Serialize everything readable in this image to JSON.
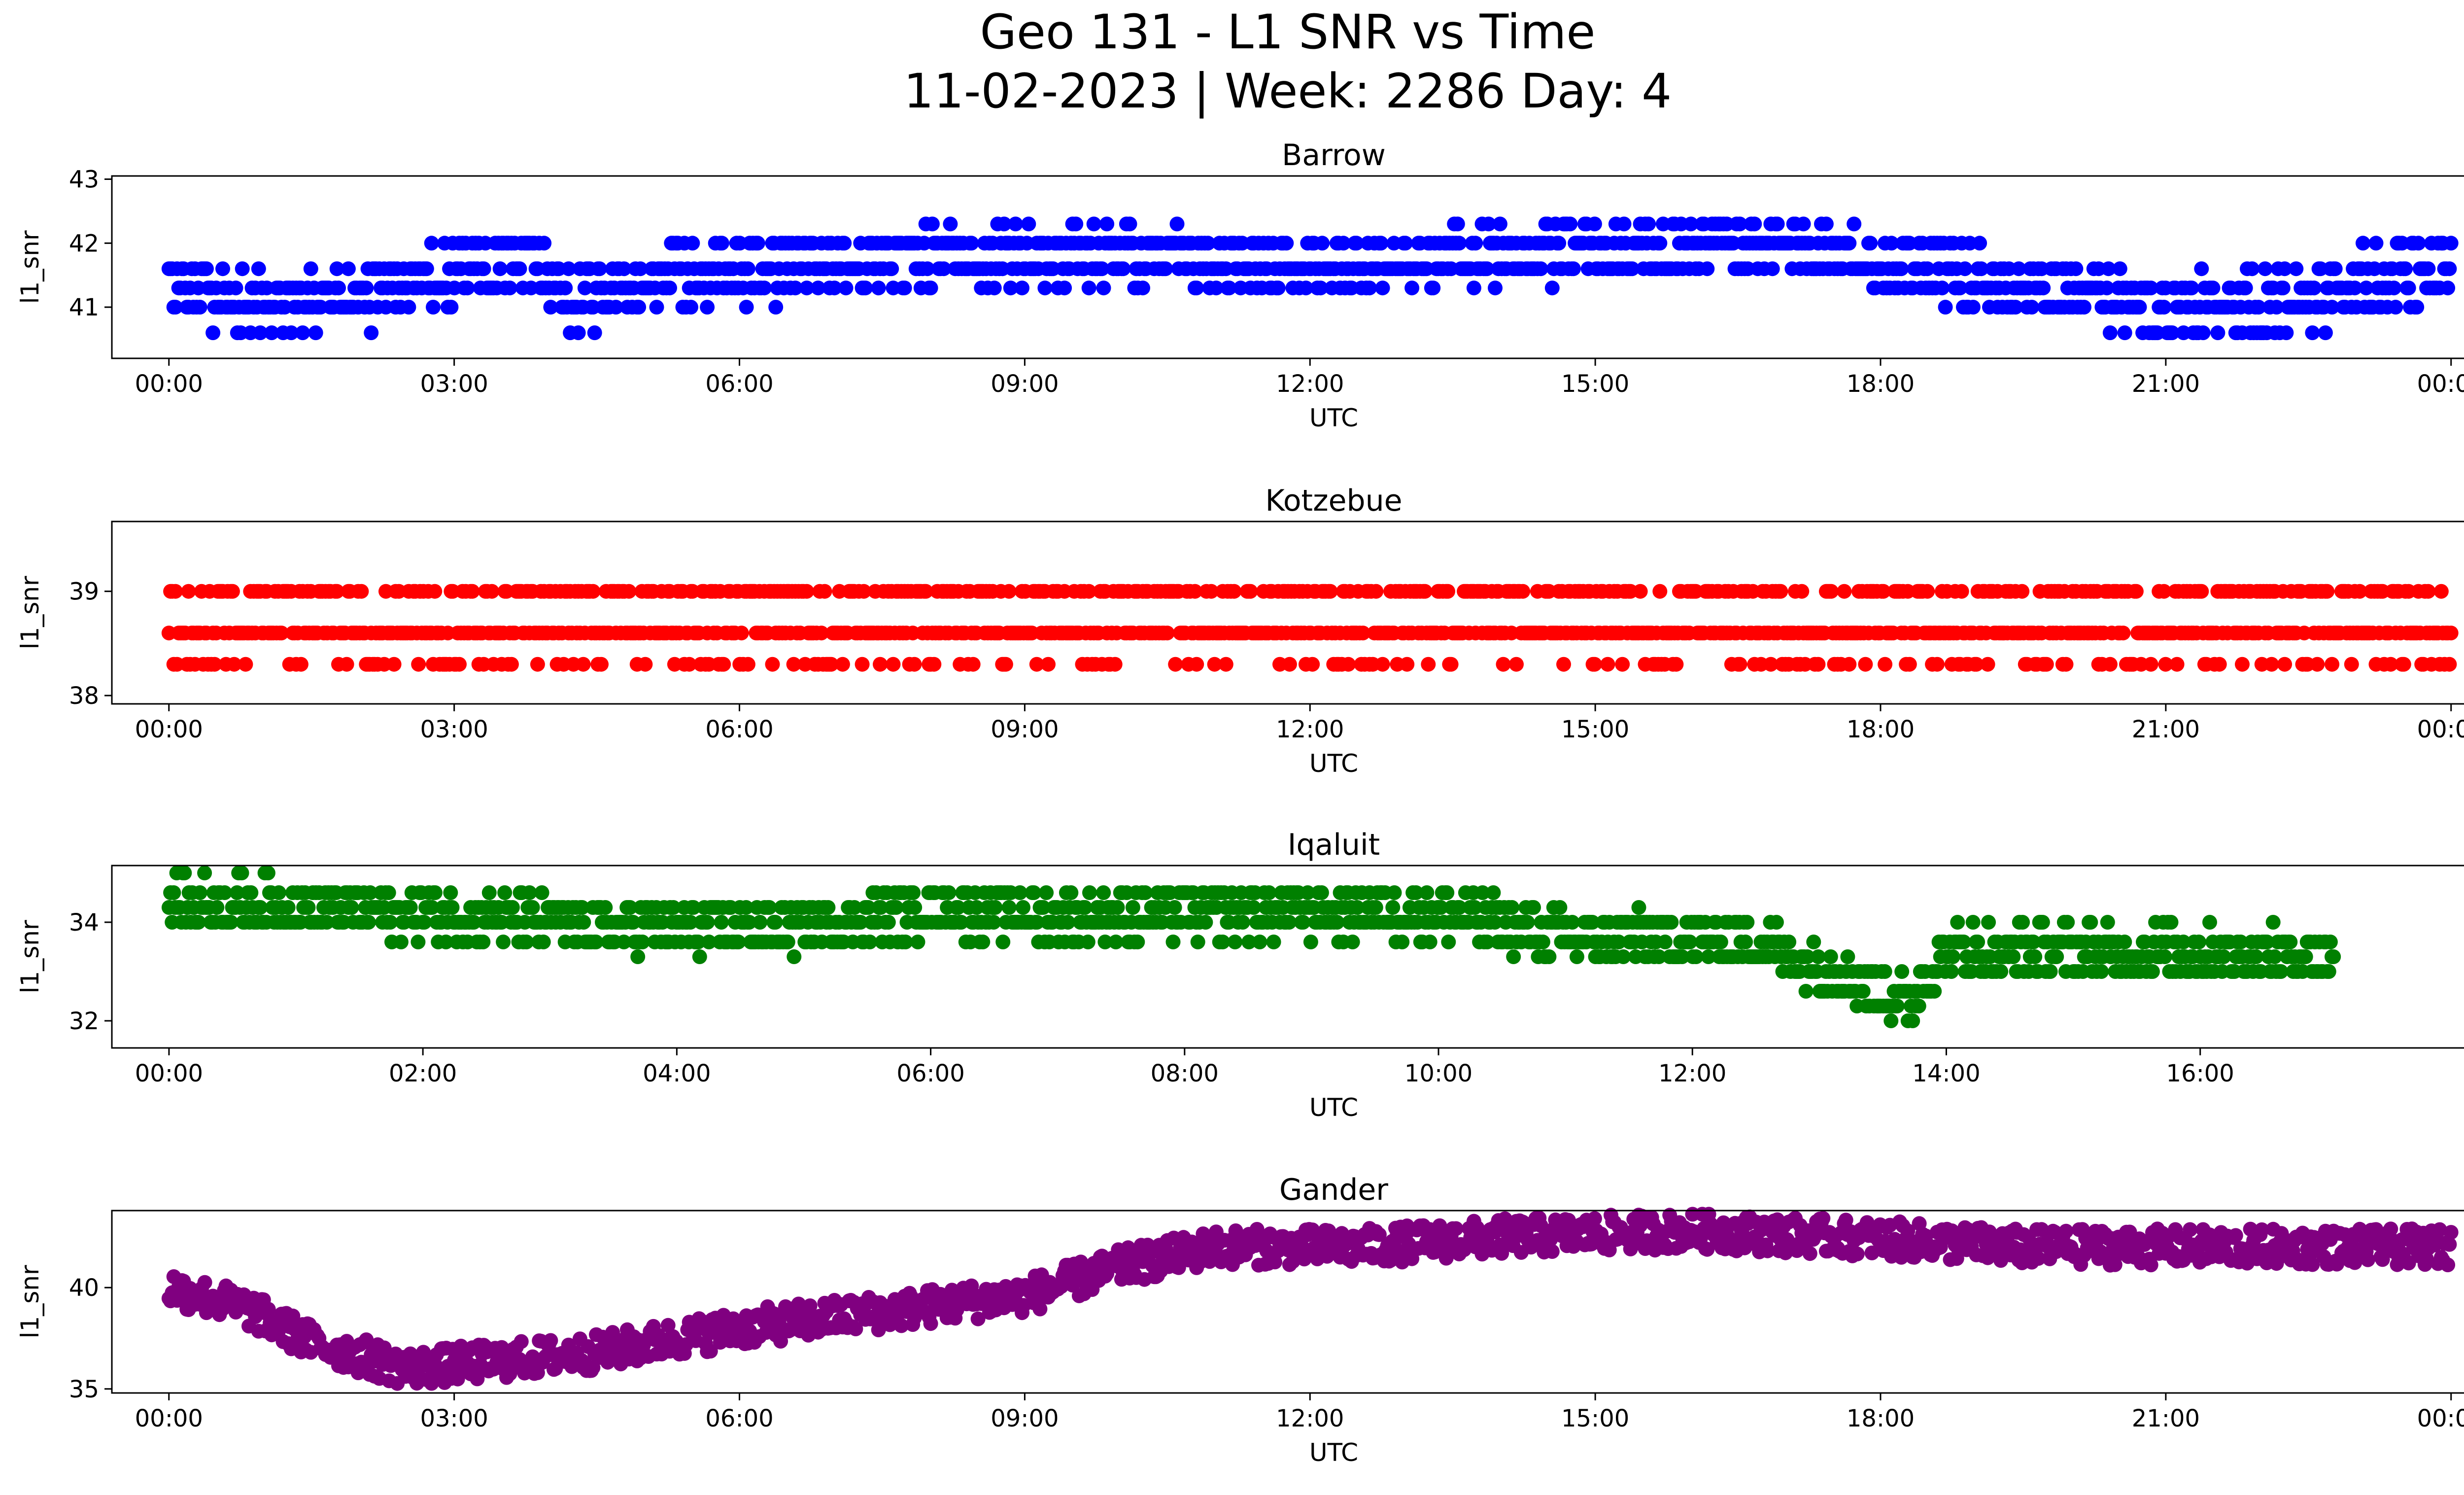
{
  "figure": {
    "title_line1": "Geo 131 - L1 SNR vs Time",
    "title_line2": "11-02-2023 | Week: 2286 Day: 4"
  },
  "chart_data": [
    {
      "type": "scatter",
      "title": "Barrow",
      "xlabel": "UTC",
      "ylabel": "l1_snr",
      "color": "#0000ff",
      "xlim": [
        -0.6,
        25.1
      ],
      "ylim": [
        40.2,
        43.05
      ],
      "xticks": [
        0,
        3,
        6,
        9,
        12,
        15,
        18,
        21,
        24
      ],
      "xtick_labels": [
        "00:00",
        "03:00",
        "06:00",
        "09:00",
        "12:00",
        "15:00",
        "18:00",
        "21:00",
        "00:00"
      ],
      "yticks": [
        41,
        42,
        43
      ],
      "ytick_labels": [
        "41",
        "42",
        "43"
      ],
      "x_end": 24.0,
      "levels_hint": [
        40.3,
        40.6,
        41.0,
        41.3,
        41.6,
        42.0,
        42.3,
        42.6,
        43.0
      ],
      "profile": [
        [
          0,
          41.3
        ],
        [
          1.3,
          41.0
        ],
        [
          2.5,
          41.3
        ],
        [
          3.0,
          41.5
        ],
        [
          3.8,
          41.7
        ],
        [
          4.3,
          41.1
        ],
        [
          5.3,
          41.5
        ],
        [
          6.5,
          41.6
        ],
        [
          8.0,
          41.8
        ],
        [
          10.0,
          41.8
        ],
        [
          12.0,
          41.6
        ],
        [
          15.0,
          41.9
        ],
        [
          17.0,
          42.0
        ],
        [
          18.0,
          41.7
        ],
        [
          19.5,
          41.3
        ],
        [
          21.0,
          41.0
        ],
        [
          22.5,
          41.1
        ],
        [
          23.0,
          41.4
        ],
        [
          24.0,
          41.5
        ]
      ],
      "spread": 0.45
    },
    {
      "type": "scatter",
      "title": "Kotzebue",
      "xlabel": "UTC",
      "ylabel": "l1_snr",
      "color": "#ff0000",
      "xlim": [
        -0.6,
        25.1
      ],
      "ylim": [
        37.92,
        39.67
      ],
      "xticks": [
        0,
        3,
        6,
        9,
        12,
        15,
        18,
        21,
        24
      ],
      "xtick_labels": [
        "00:00",
        "03:00",
        "06:00",
        "09:00",
        "12:00",
        "15:00",
        "18:00",
        "21:00",
        "00:00"
      ],
      "yticks": [
        38,
        39
      ],
      "ytick_labels": [
        "38",
        "39"
      ],
      "x_end": 24.0,
      "levels_hint": [
        38.0,
        38.3,
        38.6,
        39.0,
        39.3,
        39.6
      ],
      "profile": [
        [
          0,
          38.7
        ],
        [
          24.0,
          38.7
        ]
      ],
      "spread": 0.35
    },
    {
      "type": "scatter",
      "title": "Iqaluit",
      "xlabel": "UTC",
      "ylabel": "l1_snr",
      "color": "#008000",
      "xlim": [
        -0.45,
        18.8
      ],
      "ylim": [
        31.45,
        35.15
      ],
      "xticks": [
        0,
        2,
        4,
        6,
        8,
        10,
        12,
        14,
        16
      ],
      "xtick_labels": [
        "00:00",
        "02:00",
        "04:00",
        "06:00",
        "08:00",
        "10:00",
        "12:00",
        "14:00",
        "16:00"
      ],
      "yticks": [
        32,
        34
      ],
      "ytick_labels": [
        "32",
        "34"
      ],
      "x_end": 17.05,
      "levels_hint": [
        31.6,
        32.0,
        32.3,
        32.6,
        33.0,
        33.3,
        33.6,
        34.0,
        34.3,
        34.6,
        35.0
      ],
      "profile": [
        [
          0,
          34.4
        ],
        [
          2.0,
          34.2
        ],
        [
          3.5,
          33.9
        ],
        [
          5.0,
          33.9
        ],
        [
          6.0,
          34.3
        ],
        [
          7.0,
          34.1
        ],
        [
          8.0,
          34.2
        ],
        [
          10.0,
          34.2
        ],
        [
          11.0,
          33.7
        ],
        [
          12.5,
          33.6
        ],
        [
          13.0,
          33.1
        ],
        [
          13.7,
          32.4
        ],
        [
          14.0,
          33.4
        ],
        [
          16.0,
          33.4
        ],
        [
          17.05,
          33.3
        ]
      ],
      "spread": 0.5
    },
    {
      "type": "scatter",
      "title": "Gander",
      "xlabel": "UTC",
      "ylabel": "l1_snr",
      "color": "#800080",
      "xlim": [
        -0.6,
        25.1
      ],
      "ylim": [
        34.8,
        43.8
      ],
      "xticks": [
        0,
        3,
        6,
        9,
        12,
        15,
        18,
        21,
        24
      ],
      "xtick_labels": [
        "00:00",
        "03:00",
        "06:00",
        "09:00",
        "12:00",
        "15:00",
        "18:00",
        "21:00",
        "00:00"
      ],
      "yticks": [
        35,
        40
      ],
      "ytick_labels": [
        "35",
        "40"
      ],
      "x_end": 24.0,
      "levels_hint": [],
      "profile": [
        [
          0,
          40.0
        ],
        [
          0.8,
          39.0
        ],
        [
          1.5,
          37.3
        ],
        [
          2.5,
          36.0
        ],
        [
          3.5,
          36.4
        ],
        [
          4.5,
          36.8
        ],
        [
          6.0,
          38.0
        ],
        [
          7.5,
          38.8
        ],
        [
          9.0,
          39.6
        ],
        [
          10.0,
          41.0
        ],
        [
          11.0,
          42.0
        ],
        [
          12.5,
          42.0
        ],
        [
          14.0,
          42.5
        ],
        [
          16.0,
          42.8
        ],
        [
          18.0,
          42.4
        ],
        [
          19.5,
          42.0
        ],
        [
          24.0,
          42.0
        ]
      ],
      "spread": 0.9
    }
  ]
}
